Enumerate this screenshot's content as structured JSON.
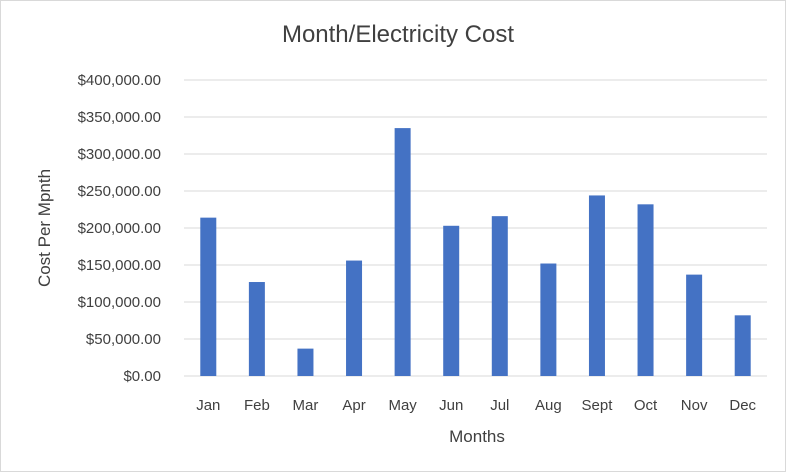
{
  "chart_data": {
    "type": "bar",
    "title": "Month/Electricity Cost",
    "xlabel": "Months",
    "ylabel": "Cost Per Mpnth",
    "categories": [
      "Jan",
      "Feb",
      "Mar",
      "Apr",
      "May",
      "Jun",
      "Jul",
      "Aug",
      "Sept",
      "Oct",
      "Nov",
      "Dec"
    ],
    "values": [
      214000,
      127000,
      37000,
      156000,
      335000,
      203000,
      216000,
      152000,
      244000,
      232000,
      137000,
      82000
    ],
    "ylim": [
      0,
      400000
    ],
    "yticks": [
      0,
      50000,
      100000,
      150000,
      200000,
      250000,
      300000,
      350000,
      400000
    ],
    "ytick_labels": [
      "$0.00",
      "$50,000.00",
      "$100,000.00",
      "$150,000.00",
      "$200,000.00",
      "$250,000.00",
      "$300,000.00",
      "$350,000.00",
      "$400,000.00"
    ],
    "grid": true,
    "legend": "none",
    "bar_color": "#4472C4",
    "grid_color": "#d9d9d9"
  }
}
